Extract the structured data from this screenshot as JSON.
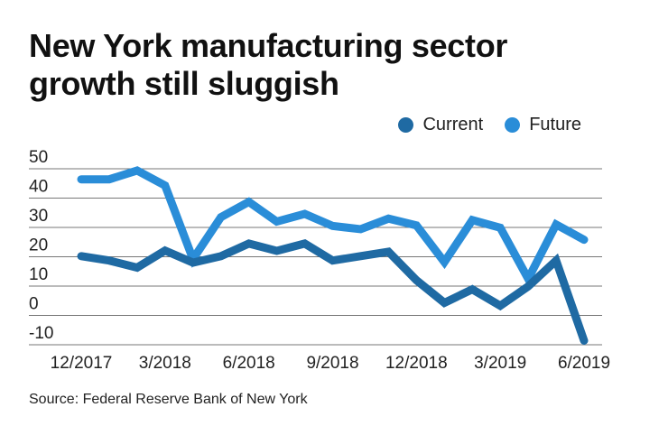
{
  "chart_data": {
    "type": "line",
    "title": "New York manufacturing sector growth still sluggish",
    "source": "Source: Federal Reserve Bank of New York",
    "x": [
      "12/2017",
      "1/2018",
      "2/2018",
      "3/2018",
      "4/2018",
      "5/2018",
      "6/2018",
      "7/2018",
      "8/2018",
      "9/2018",
      "10/2018",
      "11/2018",
      "12/2018",
      "1/2019",
      "2/2019",
      "3/2019",
      "4/2019",
      "5/2019",
      "6/2019"
    ],
    "x_tick_labels": [
      "12/2017",
      "3/2018",
      "6/2018",
      "9/2018",
      "12/2018",
      "3/2019",
      "6/2019"
    ],
    "y_tick_labels": [
      "50",
      "40",
      "30",
      "20",
      "10",
      "0",
      "-10"
    ],
    "ylim": [
      -10,
      50
    ],
    "grid": true,
    "legend_position": "top-right",
    "series": [
      {
        "name": "Current",
        "color": "#1f6aa3",
        "values": [
          20.2,
          18.7,
          16.3,
          22.1,
          18.0,
          20.2,
          24.5,
          22.0,
          24.5,
          18.7,
          20.2,
          21.7,
          12.0,
          4.3,
          8.9,
          3.3,
          9.9,
          18.7,
          -8.6
        ]
      },
      {
        "name": "Future",
        "color": "#2a8dd8",
        "values": [
          46.4,
          46.4,
          49.4,
          44.3,
          19.2,
          33.5,
          38.7,
          32.0,
          34.6,
          30.5,
          29.4,
          33.0,
          30.7,
          18.2,
          32.5,
          29.9,
          12.5,
          31.0,
          25.8
        ]
      }
    ]
  }
}
